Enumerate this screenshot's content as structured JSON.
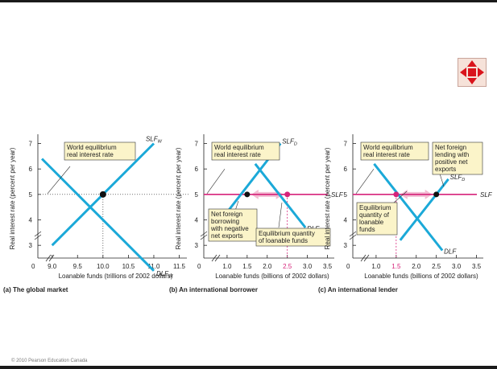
{
  "copyright": "© 2010 Pearson Education Canada",
  "nav_icon": "expand-arrows-icon",
  "colors": {
    "demand_supply": "#1ba9d8",
    "world_rate": "#d6237a",
    "arrow": "#f2bcd2",
    "axis": "#222222",
    "label_box": "#fbf4c9"
  },
  "chart_data": [
    {
      "type": "line",
      "title": "(a) The global market",
      "xlabel": "Loanable funds (trillions of 2002 dollars)",
      "ylabel": "Real interest rate (percent per year)",
      "x_ticks": [
        "9.0",
        "9.5",
        "10.0",
        "10.5",
        "11.0",
        "11.5"
      ],
      "origin_label": "0",
      "xlim": [
        8.72,
        11.65
      ],
      "y_ticks": [
        "3",
        "4",
        "5",
        "6",
        "7"
      ],
      "ylim": [
        2.5,
        7.3
      ],
      "series": [
        {
          "name": "SLF",
          "sub": "W",
          "x": [
            9.0,
            11.0
          ],
          "y": [
            3.0,
            7.0
          ]
        },
        {
          "name": "DLF",
          "sub": "W",
          "x": [
            8.8,
            11.0
          ],
          "y": [
            6.4,
            2.0
          ]
        }
      ],
      "equilibrium": {
        "x": 10.0,
        "y": 5.0
      },
      "annotations": [
        "World equilibrium",
        "real interest rate"
      ]
    },
    {
      "type": "line",
      "title": "(b) An international borrower",
      "xlabel": "Loanable funds (billions of 2002 dollars)",
      "ylabel": "Real interest rate (percent per year)",
      "x_ticks": [
        "1.0",
        "1.5",
        "2.0",
        "2.5",
        "3.0",
        "3.5"
      ],
      "origin_label": "0",
      "xlim": [
        0.42,
        3.67
      ],
      "y_ticks": [
        "3",
        "4",
        "5",
        "6",
        "7"
      ],
      "ylim": [
        2.5,
        7.3
      ],
      "world_rate": 5.0,
      "world_rate_label": "SLF",
      "series": [
        {
          "name": "SLF",
          "sub": "D",
          "x": [
            1.0,
            2.33
          ],
          "y": [
            4.3,
            7.0
          ]
        },
        {
          "name": "DLF",
          "x": [
            1.7,
            2.95
          ],
          "y": [
            6.2,
            3.7
          ]
        }
      ],
      "points": [
        {
          "x": 1.5,
          "y": 5.0
        },
        {
          "x": 2.5,
          "y": 5.0
        }
      ],
      "highlight_tick": "2.5",
      "annotations": [
        "World equilibrium",
        "real interest rate",
        "Net foreign",
        "borrowing",
        "with negative",
        "net exports",
        "Equilibrium quantity",
        "of loanable funds"
      ]
    },
    {
      "type": "line",
      "title": "(c) An international lender",
      "xlabel": "Loanable funds (billions of 2002 dollars)",
      "ylabel": "Real interest rate (percent per year)",
      "x_ticks": [
        "1.0",
        "1.5",
        "2.0",
        "2.5",
        "3.0",
        "3.5"
      ],
      "origin_label": "0",
      "xlim": [
        0.42,
        3.67
      ],
      "y_ticks": [
        "3",
        "4",
        "5",
        "6",
        "7"
      ],
      "ylim": [
        2.5,
        7.3
      ],
      "world_rate": 5.0,
      "world_rate_label": "SLF",
      "series": [
        {
          "name": "SLF",
          "sub": "D",
          "x": [
            1.6,
            2.8
          ],
          "y": [
            3.2,
            5.6
          ]
        },
        {
          "name": "DLF",
          "x": [
            0.95,
            2.65
          ],
          "y": [
            6.2,
            2.8
          ]
        }
      ],
      "points": [
        {
          "x": 1.5,
          "y": 5.0
        },
        {
          "x": 2.5,
          "y": 5.0
        }
      ],
      "highlight_tick": "1.5",
      "annotations": [
        "World equilibrium",
        "real interest rate",
        "Net foreign",
        "lending with",
        "positive net",
        "exports",
        "Equilibrium",
        "quantity of",
        "loanable",
        "funds"
      ]
    }
  ]
}
